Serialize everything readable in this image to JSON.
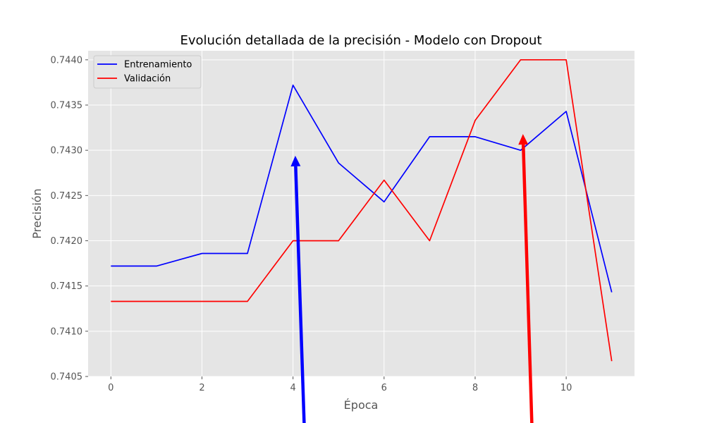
{
  "chart_data": {
    "type": "line",
    "title": "Evolución detallada de la precisión - Modelo con Dropout",
    "xlabel": "Época",
    "ylabel": "Precisión",
    "xlim": [
      -0.5,
      11.5
    ],
    "ylim": [
      0.7405,
      0.7441
    ],
    "xticks": [
      "0",
      "2",
      "4",
      "6",
      "8",
      "10"
    ],
    "xtick_values": [
      0,
      2,
      4,
      6,
      8,
      10
    ],
    "yticks": [
      "0.7405",
      "0.7410",
      "0.7415",
      "0.7420",
      "0.7425",
      "0.7430",
      "0.7435",
      "0.7440"
    ],
    "ytick_values": [
      0.7405,
      0.741,
      0.7415,
      0.742,
      0.7425,
      0.743,
      0.7435,
      0.744
    ],
    "grid": true,
    "legend_position": "top-left",
    "x": [
      0,
      1,
      2,
      3,
      4,
      5,
      6,
      7,
      8,
      9,
      10,
      11
    ],
    "series": [
      {
        "name": "Entrenamiento",
        "color": "#0000ff",
        "values": [
          0.74172,
          0.74172,
          0.74186,
          0.74186,
          0.74372,
          0.74286,
          0.74243,
          0.74315,
          0.74315,
          0.743,
          0.74343,
          0.74143
        ]
      },
      {
        "name": "Validación",
        "color": "#ff0000",
        "values": [
          0.74133,
          0.74133,
          0.74133,
          0.74133,
          0.742,
          0.742,
          0.74267,
          0.742,
          0.74333,
          0.744,
          0.744,
          0.74067
        ]
      }
    ],
    "annotations": [
      {
        "type": "arrow",
        "color": "#0000ff",
        "tip": {
          "x": 4.05,
          "y": 0.74294
        },
        "tail": {
          "x": 4.25,
          "y": 0.7399
        }
      },
      {
        "type": "arrow",
        "color": "#ff0000",
        "tip": {
          "x": 9.05,
          "y": 0.74318
        },
        "tail": {
          "x": 9.25,
          "y": 0.7399
        }
      }
    ],
    "colors": {
      "plot_background": "#e5e5e5",
      "grid": "#ffffff",
      "tick_text": "#555555"
    }
  }
}
